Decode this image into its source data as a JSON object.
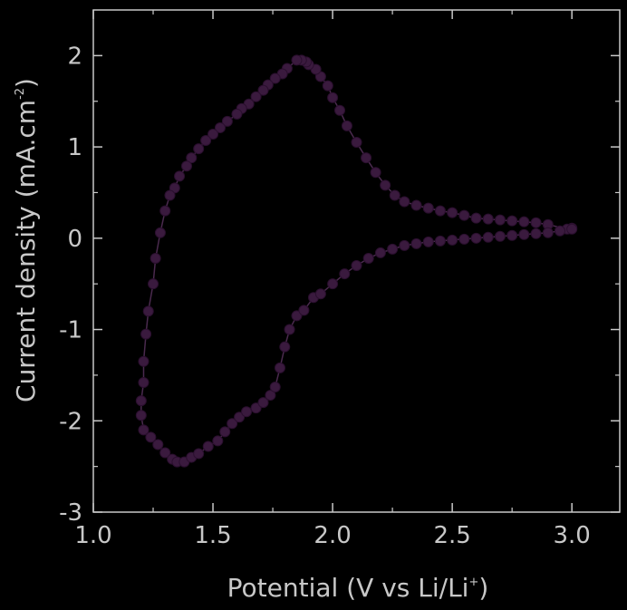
{
  "chart_data": {
    "type": "line",
    "xlabel": "Potential (V vs Li/Li",
    "xlabel_sup": "+",
    "xlabel_end": ")",
    "ylabel": "Current density (mA.cm",
    "ylabel_sup": "-2",
    "ylabel_end": ")",
    "xlim": [
      1.0,
      3.2
    ],
    "ylim": [
      -3,
      2.5
    ],
    "x_ticks": [
      1.0,
      1.5,
      2.0,
      2.5,
      3.0
    ],
    "x_tick_labels": [
      "1.0",
      "1.5",
      "2.0",
      "2.5",
      "3.0"
    ],
    "y_ticks": [
      -3,
      -2,
      -1,
      0,
      1,
      2
    ],
    "y_tick_labels": [
      "-3",
      "-2",
      "-1",
      "0",
      "1",
      "2"
    ],
    "grid": false,
    "colors": {
      "series": "#3a1a3e",
      "axis": "#c8c8c8",
      "background": "#000000"
    },
    "series": [
      {
        "x": [
          3.0,
          2.98,
          2.9,
          2.85,
          2.8,
          2.75,
          2.7,
          2.65,
          2.6,
          2.55,
          2.5,
          2.45,
          2.4,
          2.35,
          2.3,
          2.26,
          2.22,
          2.18,
          2.14,
          2.1,
          2.06,
          2.03,
          2.0,
          1.98,
          1.95,
          1.93,
          1.9,
          1.89,
          1.87,
          1.85,
          1.81,
          1.79,
          1.76,
          1.73,
          1.71,
          1.68,
          1.65,
          1.62,
          1.6,
          1.56,
          1.53,
          1.5,
          1.47,
          1.44,
          1.41,
          1.39,
          1.36,
          1.34,
          1.32,
          1.3,
          1.28,
          1.26,
          1.25,
          1.23,
          1.22,
          1.21,
          1.21,
          1.2,
          1.2,
          1.21,
          1.24,
          1.27,
          1.3,
          1.33,
          1.35,
          1.38,
          1.41,
          1.44,
          1.48,
          1.52,
          1.55,
          1.58,
          1.61,
          1.64,
          1.68,
          1.71,
          1.74,
          1.76,
          1.78,
          1.8,
          1.82,
          1.85,
          1.88,
          1.92,
          1.95,
          2.0,
          2.05,
          2.1,
          2.15,
          2.2,
          2.25,
          2.3,
          2.35,
          2.4,
          2.45,
          2.5,
          2.55,
          2.6,
          2.65,
          2.7,
          2.75,
          2.8,
          2.85,
          2.9,
          2.95,
          3.0
        ],
        "y": [
          0.11,
          0.1,
          0.15,
          0.17,
          0.18,
          0.19,
          0.2,
          0.21,
          0.22,
          0.25,
          0.28,
          0.3,
          0.33,
          0.36,
          0.4,
          0.47,
          0.58,
          0.72,
          0.88,
          1.05,
          1.23,
          1.4,
          1.54,
          1.67,
          1.77,
          1.85,
          1.9,
          1.93,
          1.95,
          1.95,
          1.86,
          1.8,
          1.75,
          1.68,
          1.62,
          1.55,
          1.47,
          1.42,
          1.36,
          1.28,
          1.21,
          1.14,
          1.07,
          0.98,
          0.88,
          0.79,
          0.68,
          0.55,
          0.47,
          0.3,
          0.06,
          -0.22,
          -0.5,
          -0.8,
          -1.05,
          -1.35,
          -1.58,
          -1.78,
          -1.94,
          -2.1,
          -2.18,
          -2.26,
          -2.35,
          -2.42,
          -2.45,
          -2.45,
          -2.4,
          -2.36,
          -2.28,
          -2.22,
          -2.12,
          -2.03,
          -1.96,
          -1.9,
          -1.86,
          -1.8,
          -1.72,
          -1.63,
          -1.42,
          -1.19,
          -1.0,
          -0.85,
          -0.79,
          -0.65,
          -0.61,
          -0.5,
          -0.39,
          -0.3,
          -0.22,
          -0.16,
          -0.12,
          -0.08,
          -0.06,
          -0.04,
          -0.03,
          -0.02,
          -0.01,
          0.0,
          0.01,
          0.02,
          0.03,
          0.04,
          0.05,
          0.06,
          0.08,
          0.1
        ]
      }
    ]
  }
}
